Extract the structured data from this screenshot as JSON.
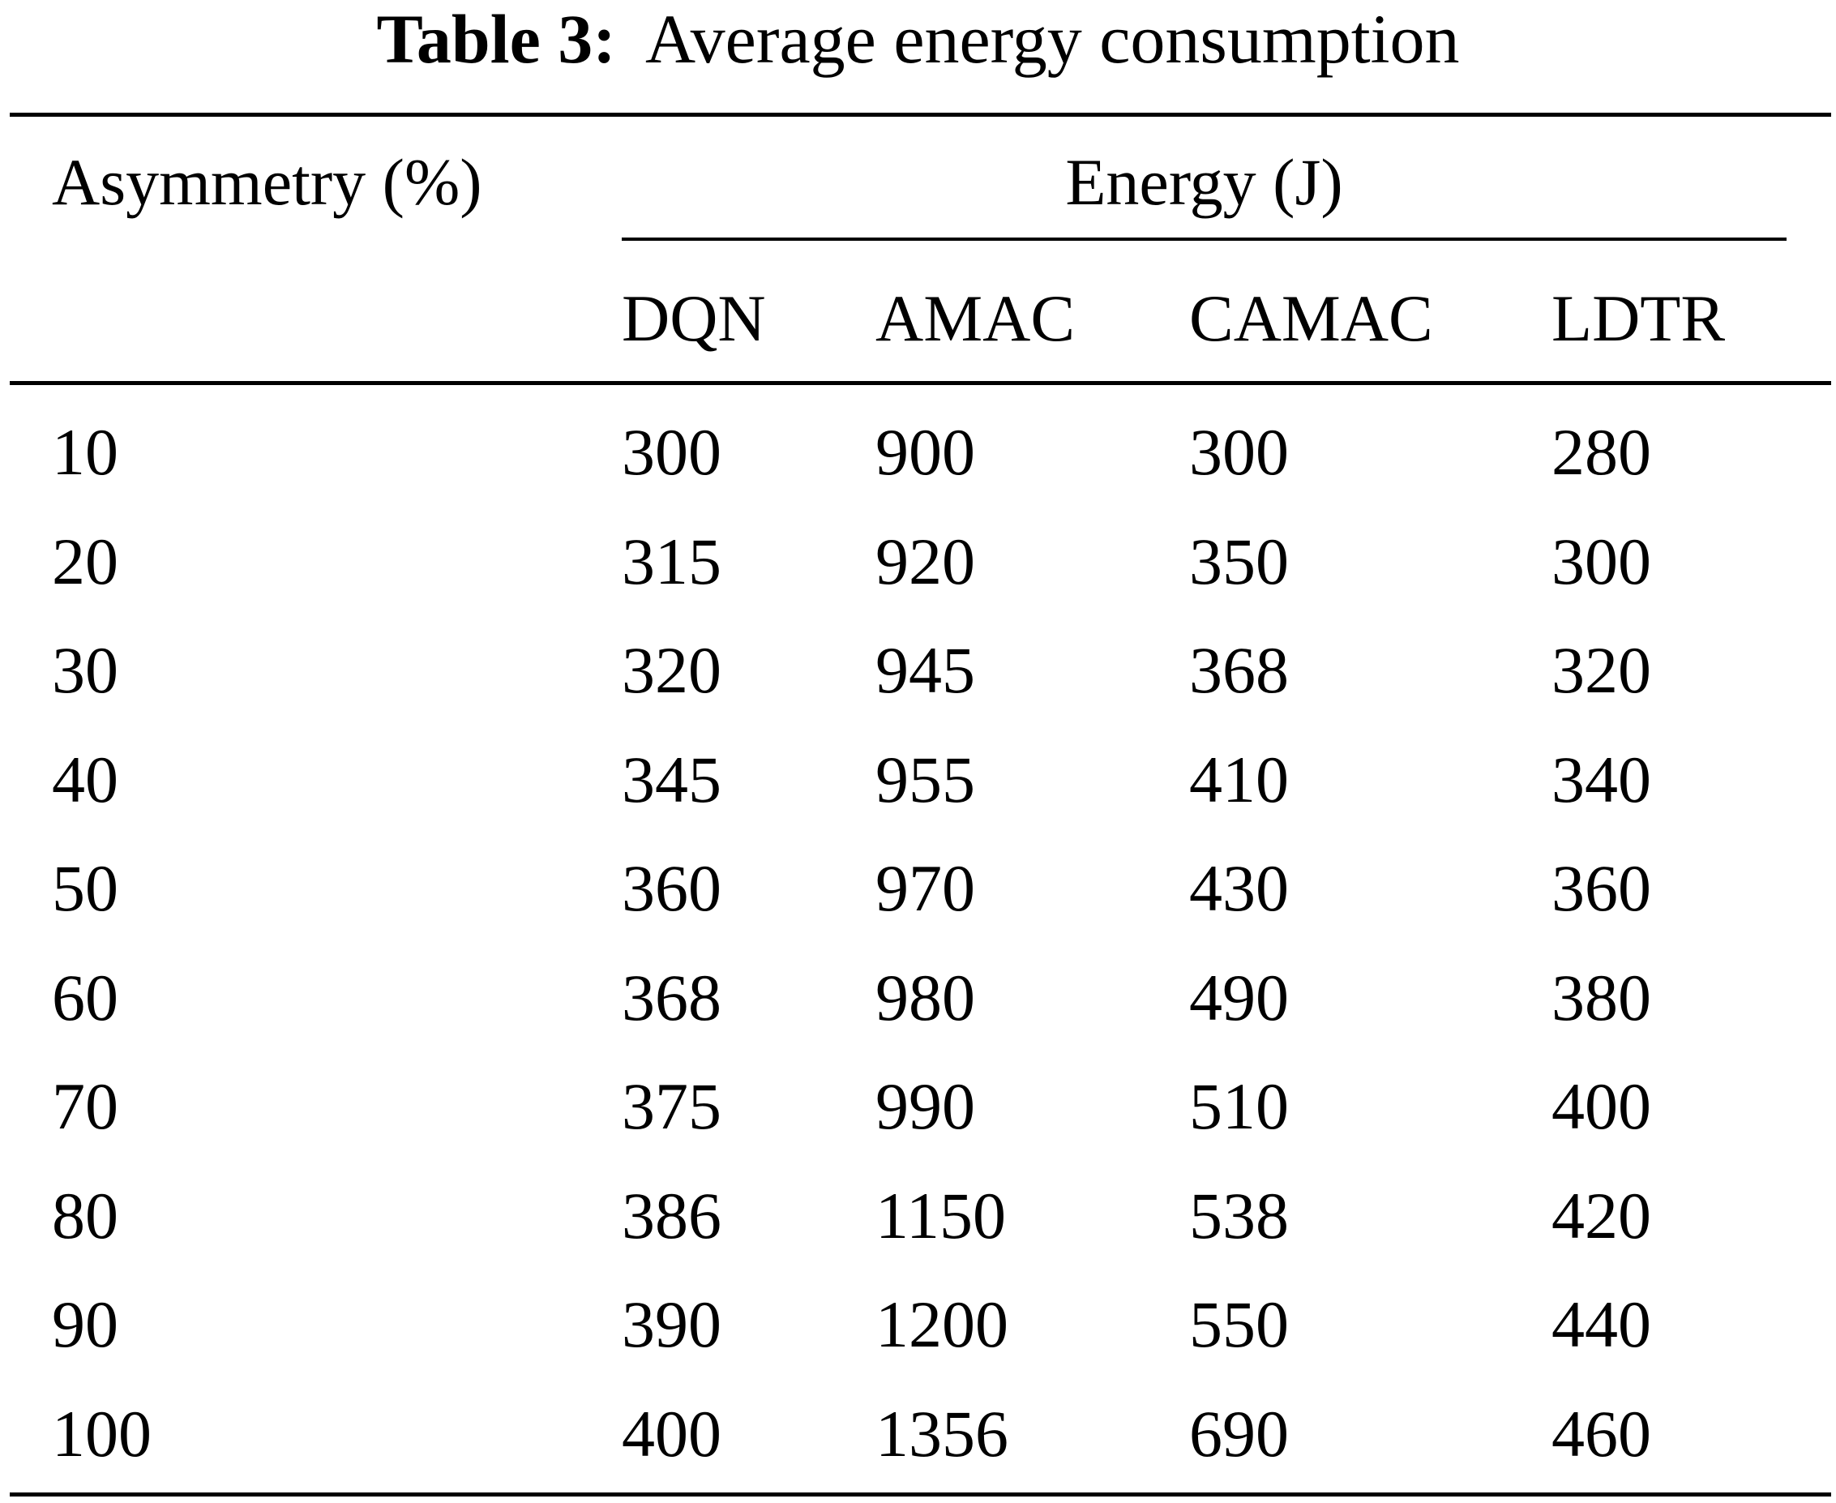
{
  "caption": {
    "label": "Table 3:",
    "text": "Average energy consumption"
  },
  "header": {
    "row_label": "Asymmetry (%)",
    "group_label": "Energy (J)",
    "columns": [
      "DQN",
      "AMAC",
      "CAMAC",
      "LDTR"
    ]
  },
  "rows": [
    [
      "10",
      "300",
      "900",
      "300",
      "280"
    ],
    [
      "20",
      "315",
      "920",
      "350",
      "300"
    ],
    [
      "30",
      "320",
      "945",
      "368",
      "320"
    ],
    [
      "40",
      "345",
      "955",
      "410",
      "340"
    ],
    [
      "50",
      "360",
      "970",
      "430",
      "360"
    ],
    [
      "60",
      "368",
      "980",
      "490",
      "380"
    ],
    [
      "70",
      "375",
      "990",
      "510",
      "400"
    ],
    [
      "80",
      "386",
      "1150",
      "538",
      "420"
    ],
    [
      "90",
      "390",
      "1200",
      "550",
      "440"
    ],
    [
      "100",
      "400",
      "1356",
      "690",
      "460"
    ]
  ]
}
